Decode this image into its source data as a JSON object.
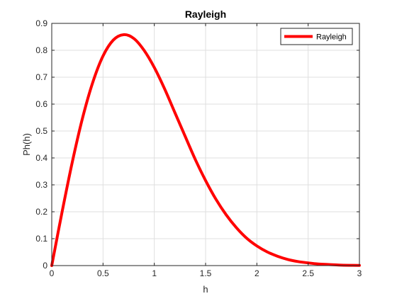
{
  "chart_data": {
    "type": "line",
    "title": "Rayleigh",
    "xlabel": "h",
    "ylabel": "Ph(h)",
    "xlim": [
      0,
      3
    ],
    "ylim": [
      0,
      0.9
    ],
    "xticks": [
      0,
      0.5,
      1,
      1.5,
      2,
      2.5,
      3
    ],
    "xtick_labels": [
      "0",
      "0.5",
      "1",
      "1.5",
      "2",
      "2.5",
      "3"
    ],
    "yticks": [
      0,
      0.1,
      0.2,
      0.3,
      0.4,
      0.5,
      0.6,
      0.7,
      0.8,
      0.9
    ],
    "ytick_labels": [
      "0",
      "0.1",
      "0.2",
      "0.3",
      "0.4",
      "0.5",
      "0.6",
      "0.7",
      "0.8",
      "0.9"
    ],
    "grid": true,
    "legend": {
      "placement": "top-right"
    },
    "series": [
      {
        "name": "Rayleigh",
        "color": "#ff0000",
        "x": [
          0,
          0.1,
          0.2,
          0.3,
          0.4,
          0.5,
          0.6,
          0.7,
          0.8,
          0.9,
          1.0,
          1.1,
          1.2,
          1.3,
          1.4,
          1.5,
          1.6,
          1.7,
          1.8,
          1.9,
          2.0,
          2.1,
          2.2,
          2.3,
          2.4,
          2.5,
          2.6,
          2.7,
          2.8,
          2.9,
          3.0
        ],
        "y": [
          0,
          0.198,
          0.384,
          0.548,
          0.681,
          0.779,
          0.838,
          0.858,
          0.844,
          0.8,
          0.736,
          0.657,
          0.569,
          0.481,
          0.394,
          0.316,
          0.247,
          0.189,
          0.141,
          0.102,
          0.073,
          0.051,
          0.035,
          0.023,
          0.015,
          0.01,
          0.006,
          0.004,
          0.002,
          0.001,
          0.0007
        ]
      }
    ]
  }
}
